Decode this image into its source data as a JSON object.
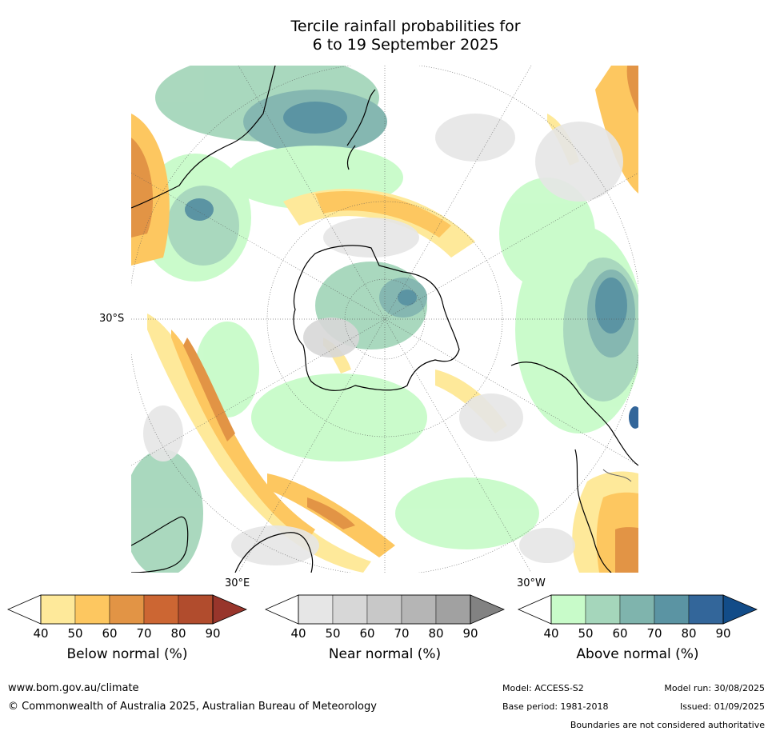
{
  "title_line1": "Tercile rainfall probabilities for",
  "title_line2": "6 to 19 September 2025",
  "map": {
    "projection": "south-polar-stereographic",
    "lat_label": "30°S",
    "lon_labels": {
      "east": "30°E",
      "west": "30°W"
    }
  },
  "colorbars": [
    {
      "label": "Below normal (%)",
      "ticks": [
        "40",
        "50",
        "60",
        "70",
        "80",
        "90"
      ],
      "colors": [
        "#ffffff",
        "#fee99a",
        "#fdc760",
        "#e29445",
        "#cc6633",
        "#b14c2d",
        "#98352b"
      ]
    },
    {
      "label": "Near normal (%)",
      "ticks": [
        "40",
        "50",
        "60",
        "70",
        "80",
        "90"
      ],
      "colors": [
        "#ffffff",
        "#e6e6e6",
        "#d7d7d7",
        "#c8c8c8",
        "#b5b5b5",
        "#a1a1a1",
        "#828282"
      ]
    },
    {
      "label": "Above normal (%)",
      "ticks": [
        "40",
        "50",
        "60",
        "70",
        "80",
        "90"
      ],
      "colors": [
        "#ffffff",
        "#c8fbc9",
        "#a5d6bb",
        "#7fb4ad",
        "#5b94a3",
        "#33669a",
        "#124c88"
      ]
    }
  ],
  "footer": {
    "website": "www.bom.gov.au/climate",
    "copyright": "© Commonwealth of Australia 2025, Australian Bureau of Meteorology",
    "model": "Model: ACCESS-S2",
    "model_run": "Model run: 30/08/2025",
    "base_period": "Base period: 1981-2018",
    "issued": "Issued: 01/09/2025",
    "disclaimer": "Boundaries are not considered authoritative"
  }
}
